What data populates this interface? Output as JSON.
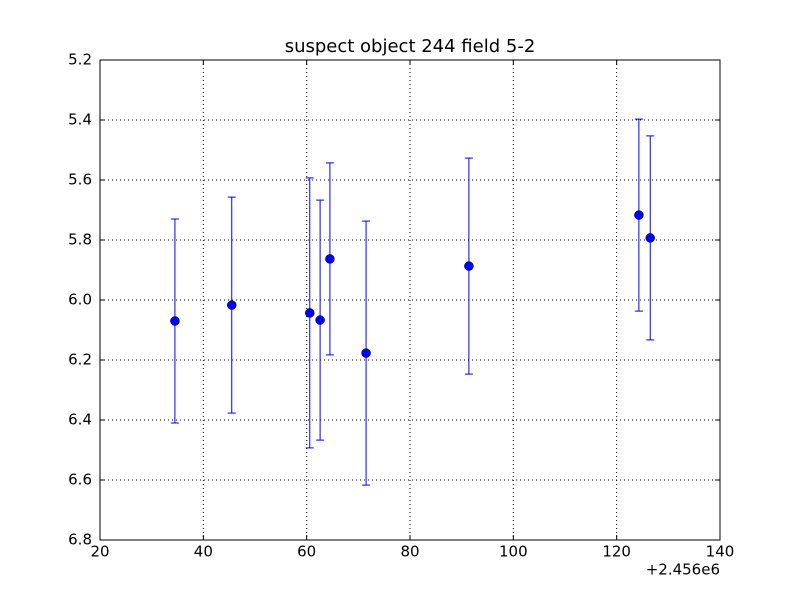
{
  "chart_data": {
    "type": "errorbar",
    "title": "suspect object 244 field 5-2",
    "x": [
      34.5,
      45.5,
      60.6,
      62.6,
      64.5,
      71.5,
      91.4,
      124.3,
      126.5
    ],
    "values": [
      6.07,
      6.017,
      6.043,
      6.067,
      5.863,
      6.177,
      5.887,
      5.717,
      5.793
    ],
    "errors": [
      0.34,
      0.36,
      0.45,
      0.4,
      0.32,
      0.44,
      0.36,
      0.32,
      0.34
    ],
    "color": "#0000ff",
    "xlim": [
      20,
      140
    ],
    "xticks": [
      20,
      40,
      60,
      80,
      100,
      120,
      140
    ],
    "x_offset_label": "+2.456e6",
    "ylim": [
      6.8,
      5.2
    ],
    "yticks": [
      5.2,
      5.4,
      5.6,
      5.8,
      {
        "value": 6,
        "label": "6.0"
      },
      6.2,
      6.4,
      6.6,
      6.8
    ],
    "grid": true
  }
}
